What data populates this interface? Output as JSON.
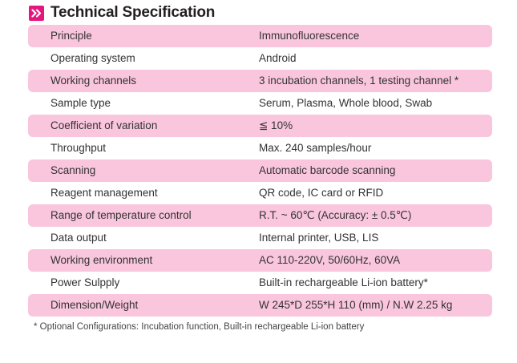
{
  "header": {
    "title": "Technical Specification",
    "icon": "double-chevron-right-icon",
    "accent_color": "#e5177e"
  },
  "table": {
    "shade_color": "#f9c6dd",
    "rows": [
      {
        "label": "Principle",
        "value": "Immunofluorescence",
        "shaded": true
      },
      {
        "label": "Operating system",
        "value": "Android",
        "shaded": false
      },
      {
        "label": "Working channels",
        "value": "3 incubation channels, 1 testing channel *",
        "shaded": true
      },
      {
        "label": "Sample type",
        "value": "Serum, Plasma, Whole blood, Swab",
        "shaded": false
      },
      {
        "label": "Coefficient of variation",
        "value": "≦ 10%",
        "shaded": true
      },
      {
        "label": "Throughput",
        "value": "Max. 240 samples/hour",
        "shaded": false
      },
      {
        "label": "Scanning",
        "value": "Automatic barcode scanning",
        "shaded": true
      },
      {
        "label": "Reagent management",
        "value": "QR code, IC card or RFID",
        "shaded": false
      },
      {
        "label": "Range of temperature control",
        "value": "R.T. ~ 60℃ (Accuracy: ± 0.5℃)",
        "shaded": true
      },
      {
        "label": "Data output",
        "value": "Internal printer, USB, LIS",
        "shaded": false
      },
      {
        "label": "Working environment",
        "value": "AC 110-220V, 50/60Hz, 60VA",
        "shaded": true
      },
      {
        "label": "Power Sulpply",
        "value": "Built-in rechargeable Li-ion battery*",
        "shaded": false
      },
      {
        "label": "Dimension/Weight",
        "value": "W 245*D 255*H 110 (mm) / N.W 2.25 kg",
        "shaded": true
      }
    ]
  },
  "footnote": "* Optional Configurations: Incubation function, Built-in rechargeable Li-ion battery"
}
